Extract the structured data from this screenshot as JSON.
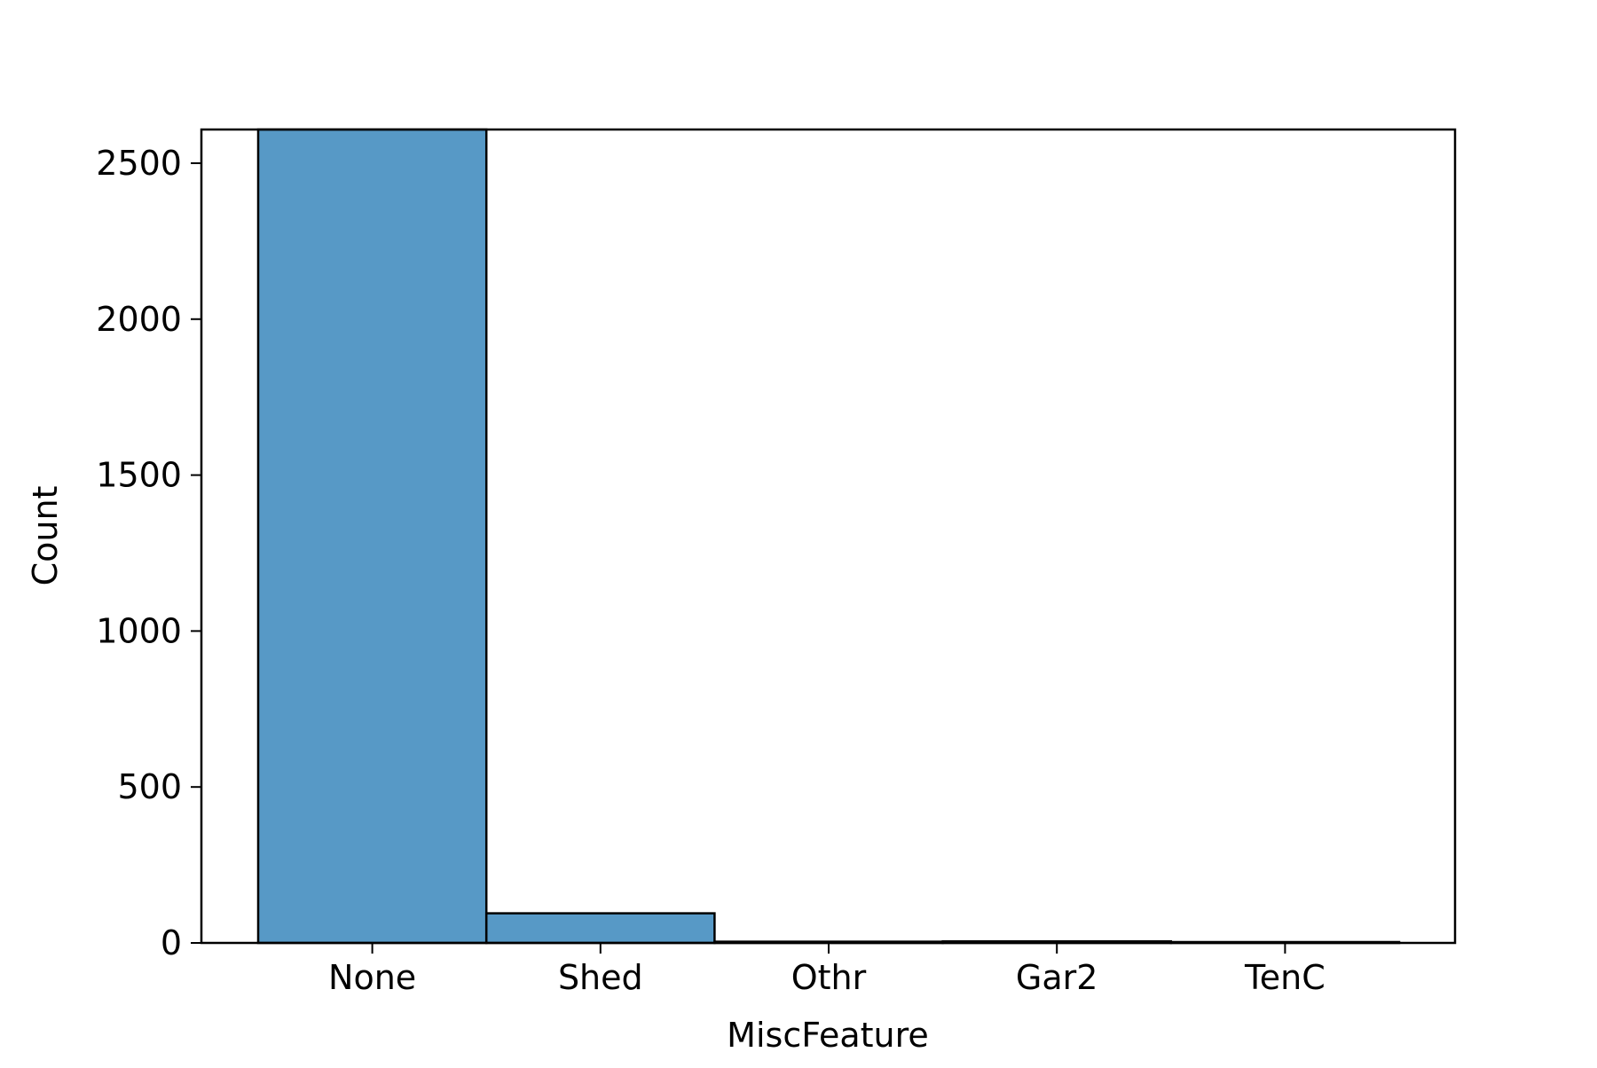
{
  "chart_data": {
    "type": "bar",
    "title": "",
    "xlabel": "MiscFeature",
    "ylabel": "Count",
    "categories": [
      "None",
      "Shed",
      "Othr",
      "Gar2",
      "TenC"
    ],
    "values": [
      2814,
      95,
      4,
      5,
      1
    ],
    "ylim": [
      0,
      2608
    ],
    "yticks": [
      0,
      500,
      1000,
      1500,
      2000,
      2500
    ],
    "ytick_labels": [
      "0",
      "500",
      "1000",
      "1500",
      "2000",
      "2500"
    ],
    "grid": false,
    "legend": "none",
    "bar_color": "#5799c6",
    "edge_color": "#000000"
  }
}
